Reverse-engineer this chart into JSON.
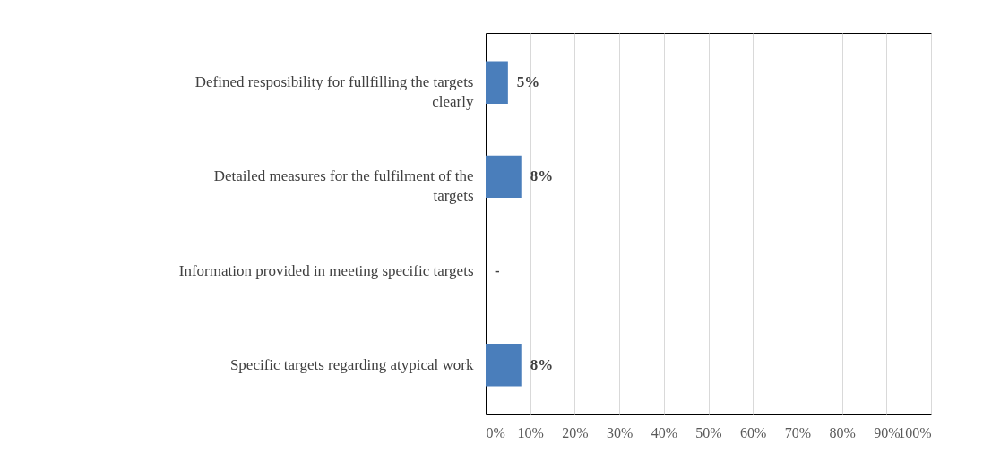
{
  "chart_data": {
    "type": "bar",
    "orientation": "horizontal",
    "categories": [
      "Defined resposibility for fullfilling the targets clearly",
      "Detailed measures for the fulfilment of the targets",
      "Information provided in meeting  specific targets",
      "Specific targets  regarding atypical work"
    ],
    "values": [
      5,
      8,
      0,
      8
    ],
    "color": "#4a7ebb",
    "value_labels": [
      "5%",
      "8%",
      "-",
      "8%"
    ],
    "xlim": [
      0,
      100
    ],
    "xticks": [
      {
        "value": 0,
        "label": "0%"
      },
      {
        "value": 10,
        "label": "10%"
      },
      {
        "value": 20,
        "label": "20%"
      },
      {
        "value": 30,
        "label": "30%"
      },
      {
        "value": 40,
        "label": "40%"
      },
      {
        "value": 50,
        "label": "50%"
      },
      {
        "value": 60,
        "label": "60%"
      },
      {
        "value": 70,
        "label": "70%"
      },
      {
        "value": 80,
        "label": "80%"
      },
      {
        "value": 90,
        "label": "90%"
      },
      {
        "value": 100,
        "label": "100%"
      }
    ],
    "grid": "x"
  }
}
